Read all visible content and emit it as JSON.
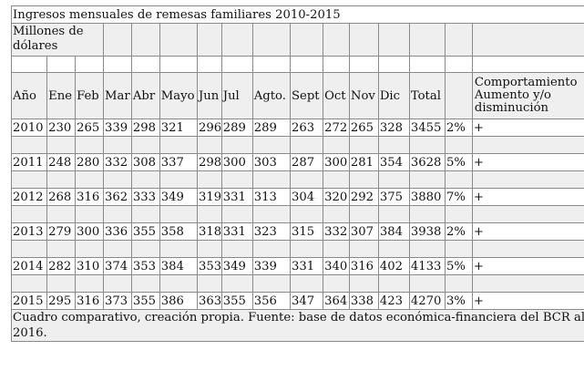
{
  "title": "Ingresos mensuales de remesas familiares 2010-2015",
  "unit_label": "Millones de dólares",
  "headers": [
    "Año",
    "Ene",
    "Feb",
    "Mar",
    "Abr",
    "Mayo",
    "Jun",
    "Jul",
    "Agto.",
    "Sept",
    "Oct",
    "Nov",
    "Dic",
    "Total",
    "",
    "Comportamiento Aumento y/o disminución"
  ],
  "rows": [
    [
      "2010",
      "230",
      "265",
      "339",
      "298",
      "321",
      "296",
      "289",
      "289",
      "263",
      "272",
      "265",
      "328",
      "3455",
      "2%",
      "+"
    ],
    [
      "2011",
      "248",
      "280",
      "332",
      "308",
      "337",
      "298",
      "300",
      "303",
      "287",
      "300",
      "281",
      "354",
      "3628",
      "5%",
      "+"
    ],
    [
      "2012",
      "268",
      "316",
      "362",
      "333",
      "349",
      "319",
      "331",
      "313",
      "304",
      "320",
      "292",
      "375",
      "3880",
      "7%",
      "+"
    ],
    [
      "2013",
      "279",
      "300",
      "336",
      "355",
      "358",
      "318",
      "331",
      "323",
      "315",
      "332",
      "307",
      "384",
      "3938",
      "2%",
      "+"
    ],
    [
      "2014",
      "282",
      "310",
      "374",
      "353",
      "384",
      "353",
      "349",
      "339",
      "331",
      "340",
      "316",
      "402",
      "4133",
      "5%",
      "+"
    ],
    [
      "2015",
      "295",
      "316",
      "373",
      "355",
      "386",
      "363",
      "355",
      "356",
      "347",
      "364",
      "338",
      "423",
      "4270",
      "3%",
      "+"
    ]
  ],
  "source": "Cuadro comparativo, creación propia. Fuente: base de datos económica-financiera del BCR al 2016."
}
